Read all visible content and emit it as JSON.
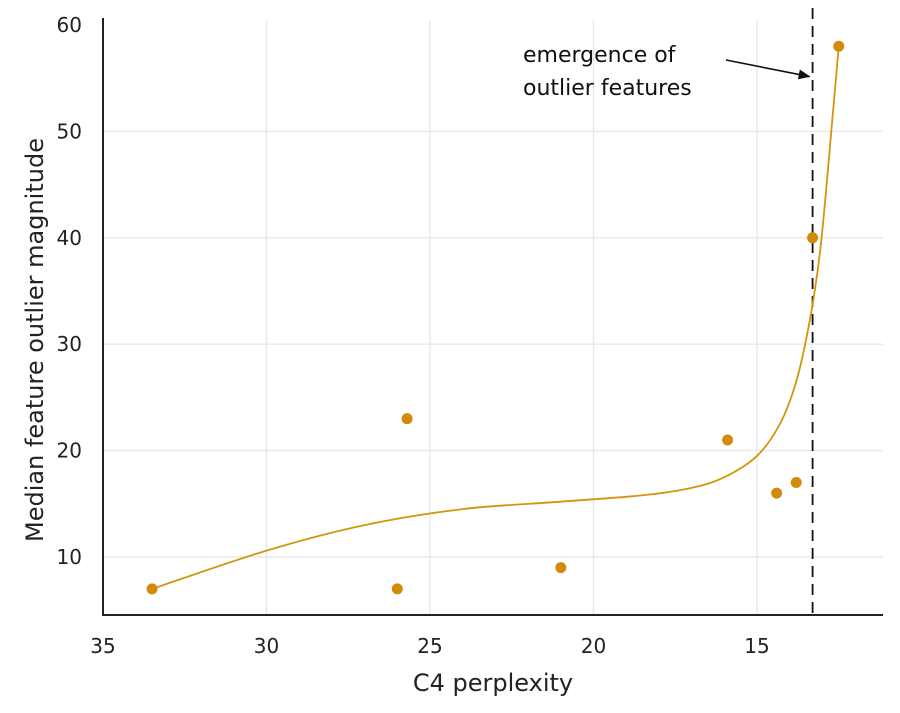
{
  "chart_data": {
    "type": "scatter",
    "title": "",
    "xlabel": "C4 perplexity",
    "ylabel": "Median feature outlier magnitude",
    "x_reversed": true,
    "xlim": [
      35,
      11
    ],
    "ylim": [
      4.5,
      60
    ],
    "x_ticks": [
      35,
      30,
      25,
      20,
      15
    ],
    "y_ticks": [
      10,
      20,
      30,
      40,
      50,
      60
    ],
    "x_tick_labels": [
      "35",
      "30",
      "25",
      "20",
      "15"
    ],
    "y_tick_labels": [
      "10",
      "20",
      "30",
      "40",
      "50",
      "60"
    ],
    "grid": true,
    "series": [
      {
        "points": [
          {
            "x": 33.5,
            "y": 7
          },
          {
            "x": 26.0,
            "y": 7
          },
          {
            "x": 25.7,
            "y": 23
          },
          {
            "x": 21.0,
            "y": 9
          },
          {
            "x": 15.9,
            "y": 21
          },
          {
            "x": 14.4,
            "y": 16
          },
          {
            "x": 13.8,
            "y": 17
          },
          {
            "x": 13.3,
            "y": 40
          },
          {
            "x": 12.5,
            "y": 58
          }
        ]
      }
    ],
    "trend_curve": [
      {
        "x": 33.5,
        "y": 7.0
      },
      {
        "x": 30.0,
        "y": 10.6
      },
      {
        "x": 27.0,
        "y": 13.0
      },
      {
        "x": 24.0,
        "y": 14.5
      },
      {
        "x": 21.0,
        "y": 15.2
      },
      {
        "x": 18.5,
        "y": 15.8
      },
      {
        "x": 17.0,
        "y": 16.5
      },
      {
        "x": 16.0,
        "y": 17.5
      },
      {
        "x": 15.0,
        "y": 19.5
      },
      {
        "x": 14.3,
        "y": 22.5
      },
      {
        "x": 13.8,
        "y": 26.5
      },
      {
        "x": 13.4,
        "y": 32.0
      },
      {
        "x": 13.1,
        "y": 38.0
      },
      {
        "x": 12.9,
        "y": 44.0
      },
      {
        "x": 12.7,
        "y": 51.0
      },
      {
        "x": 12.5,
        "y": 58.0
      }
    ],
    "vertical_line_x": 13.3,
    "annotation": {
      "lines": [
        "emergence of",
        "outlier features"
      ],
      "arrow_target": {
        "x": 13.3,
        "y": 56
      }
    },
    "colors": {
      "points": "#d48a08",
      "curve": "#d4950c",
      "vline": "#111111",
      "grid": "#e8e8e8",
      "axis": "#222222"
    }
  }
}
